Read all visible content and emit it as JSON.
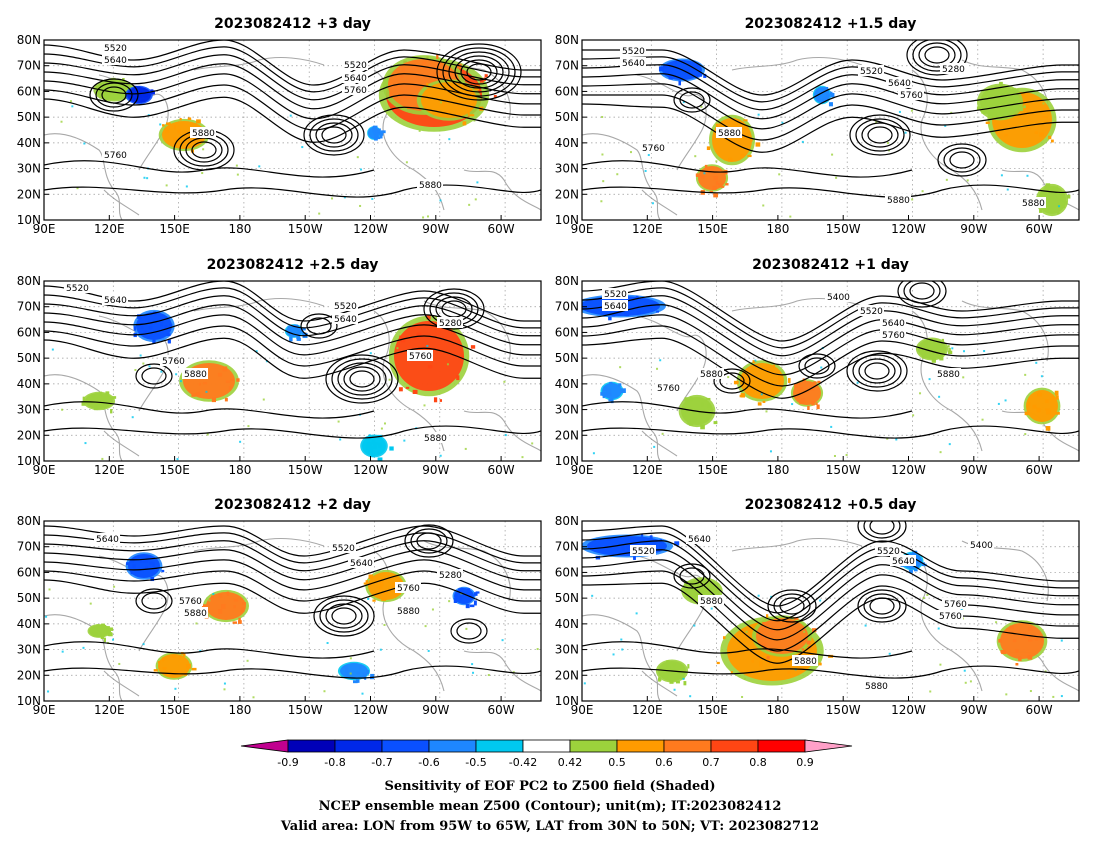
{
  "figure": {
    "caption_lines": [
      "Sensitivity of EOF PC2 to Z500 field (Shaded)",
      "NCEP ensemble mean Z500 (Contour); unit(m); IT:2023082412",
      "Valid area: LON from 95W to 65W, LAT from 30N to 50N; VT: 2023082712"
    ]
  },
  "axes": {
    "lon_ticks": [
      "90E",
      "120E",
      "150E",
      "180",
      "150W",
      "120W",
      "90W",
      "60W"
    ],
    "lat_ticks": [
      "10N",
      "20N",
      "30N",
      "40N",
      "50N",
      "60N",
      "70N",
      "80N"
    ]
  },
  "colorbar": {
    "colors": [
      "#c0008f",
      "#0000b8",
      "#0028e8",
      "#0a50ff",
      "#1e87ff",
      "#00c8f0",
      "#ffffff",
      "#9cd23c",
      "#ff9b00",
      "#ff7a1e",
      "#ff4614",
      "#ff0000",
      "#ffa0c8"
    ],
    "labels": [
      "-0.9",
      "-0.8",
      "-0.7",
      "-0.6",
      "-0.5",
      "-0.42",
      "0.42",
      "0.5",
      "0.6",
      "0.7",
      "0.8",
      "0.9"
    ]
  },
  "panels": [
    {
      "title": "2023082412  +3 day",
      "contour_labels": [
        "5520",
        "5640",
        "5520",
        "5640",
        "5760",
        "5880",
        "5760",
        "5880"
      ]
    },
    {
      "title": "2023082412  +1.5 day",
      "contour_labels": [
        "5520",
        "5640",
        "5280",
        "5520",
        "5640",
        "5760",
        "5880",
        "5760",
        "5880",
        "5880"
      ]
    },
    {
      "title": "2023082412  +2.5 day",
      "contour_labels": [
        "5520",
        "5640",
        "5520",
        "5640",
        "5280",
        "5760",
        "5880",
        "5760",
        "5880"
      ]
    },
    {
      "title": "2023082412  +1 day",
      "contour_labels": [
        "5520",
        "5640",
        "5400",
        "5520",
        "5640",
        "5760",
        "5760",
        "5880",
        "5880"
      ]
    },
    {
      "title": "2023082412  +2 day",
      "contour_labels": [
        "5640",
        "5520",
        "5640",
        "5280",
        "5760",
        "5880",
        "5760",
        "5880"
      ]
    },
    {
      "title": "2023082412  +0.5 day",
      "contour_labels": [
        "5520",
        "5640",
        "5400",
        "5520",
        "5640",
        "5760",
        "5880",
        "5760",
        "5880",
        "5880"
      ]
    }
  ]
}
